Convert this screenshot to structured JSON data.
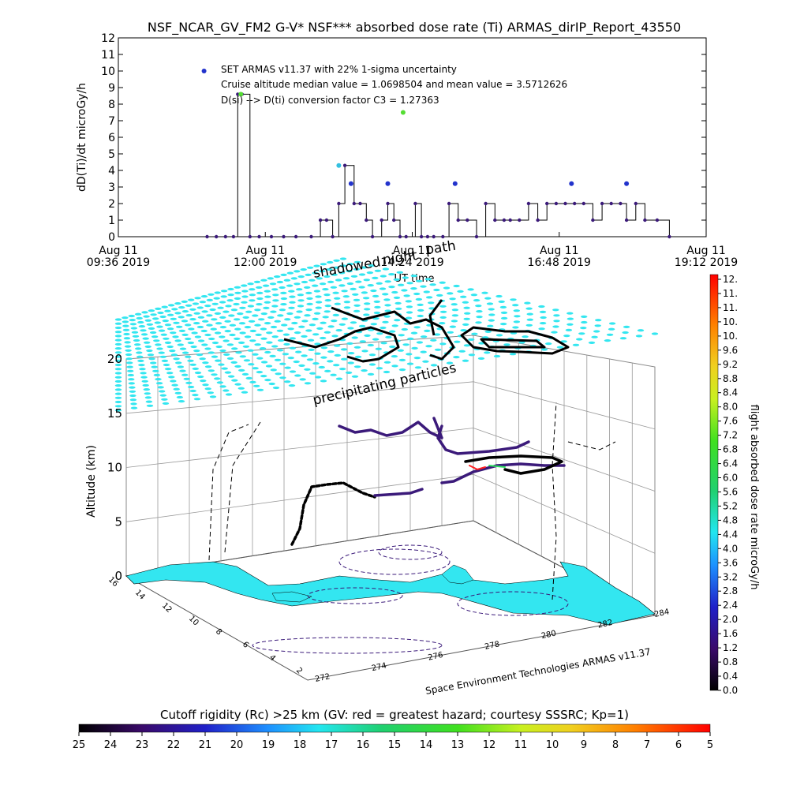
{
  "title": "NSF_NCAR_GV_FM2 G-V* NSF*** absorbed dose rate (Ti) ARMAS_dirIP_Report_43550",
  "colors": {
    "cyan": "#33e6f0",
    "path": "#000000",
    "purple": "#3b1a7a"
  },
  "chart_data": [
    {
      "type": "line",
      "ylabel": "dD(Ti)/dt microGy/h",
      "xlabel": "UT time",
      "ylim": [
        0,
        12
      ],
      "yticks": [
        "0",
        "1",
        "2",
        "3",
        "4",
        "5",
        "6",
        "7",
        "8",
        "9",
        "10",
        "11",
        "12"
      ],
      "xticks": [
        {
          "line1": "Aug 11",
          "line2": "09:36 2019"
        },
        {
          "line1": "Aug 11",
          "line2": "12:00 2019"
        },
        {
          "line1": "Aug 11",
          "line2": "14:24 2019"
        },
        {
          "line1": "Aug 11",
          "line2": "16:48 2019"
        },
        {
          "line1": "Aug 11",
          "line2": "19:12 2019"
        }
      ],
      "xlim_hours": [
        9.6,
        19.2
      ],
      "annotations": [
        "SET ARMAS v11.37 with 22% 1-sigma uncertainty",
        "Cruise altitude median value = 1.0698504 and mean value = 3.5712626",
        "D(si) --> D(ti) conversion factor C3 = 1.27363"
      ],
      "series": [
        {
          "x_hours": [
            11.05,
            11.2,
            11.35,
            11.48,
            11.55,
            11.62,
            11.75,
            11.9,
            12.1,
            12.3,
            12.5,
            12.75,
            12.9,
            13.0,
            13.1,
            13.2,
            13.3,
            13.45,
            13.55,
            13.65,
            13.75,
            13.9,
            14.0,
            14.1,
            14.2,
            14.3,
            14.45,
            14.55,
            14.65,
            14.75,
            14.9,
            15.0,
            15.15,
            15.3,
            15.45,
            15.6,
            15.75,
            15.9,
            16.0,
            16.15,
            16.3,
            16.45,
            16.6,
            16.75,
            16.9,
            17.05,
            17.2,
            17.35,
            17.5,
            17.65,
            17.8,
            17.9,
            18.05,
            18.2,
            18.4,
            18.6
          ],
          "values": [
            0,
            0,
            0,
            0,
            8.6,
            8.6,
            0,
            0,
            0,
            0,
            0,
            0,
            1,
            1,
            0,
            2,
            4.3,
            2,
            2,
            1,
            0,
            1,
            2,
            1,
            0,
            0,
            2,
            0,
            0,
            0,
            0,
            2,
            1,
            1,
            0,
            2,
            1,
            1,
            1,
            1,
            2,
            1,
            2,
            2,
            2,
            2,
            2,
            1,
            2,
            2,
            2,
            1,
            2,
            1,
            1,
            0
          ]
        }
      ],
      "highlight_points": [
        {
          "x_hours": 11.0,
          "value": 10.0,
          "color": "#2233cc"
        },
        {
          "x_hours": 11.6,
          "value": 8.6,
          "color": "#55dd33"
        },
        {
          "x_hours": 13.2,
          "value": 4.3,
          "color": "#33c0e0"
        },
        {
          "x_hours": 13.4,
          "value": 3.2,
          "color": "#2233cc"
        },
        {
          "x_hours": 14.0,
          "value": 3.2,
          "color": "#2233cc"
        },
        {
          "x_hours": 14.25,
          "value": 7.5,
          "color": "#55dd33"
        },
        {
          "x_hours": 15.1,
          "value": 3.2,
          "color": "#2233cc"
        },
        {
          "x_hours": 17.0,
          "value": 3.2,
          "color": "#2233cc"
        },
        {
          "x_hours": 17.9,
          "value": 3.2,
          "color": "#2233cc"
        }
      ]
    },
    {
      "type": "scatter",
      "zlabel": "Altitude (km)",
      "zticks": [
        "0",
        "5",
        "10",
        "15",
        "20"
      ],
      "lon_ticks": [
        "272",
        "274",
        "276",
        "278",
        "280",
        "282",
        "284"
      ],
      "lat_ticks": [
        "16",
        "14",
        "12",
        "10",
        "8",
        "6",
        "4",
        "2"
      ],
      "annotations": [
        "shadowed",
        "night",
        "path",
        "precipitating particles",
        "Space Environment Technologies ARMAS v11.37"
      ],
      "colorbar": {
        "label": "flight absorbed dose rate microGy/h",
        "ticks": [
          "12.",
          "11.",
          "11.",
          "10.",
          "10.",
          "9.6",
          "9.2",
          "8.8",
          "8.4",
          "8.0",
          "7.6",
          "7.2",
          "6.8",
          "6.4",
          "6.0",
          "5.6",
          "5.2",
          "4.8",
          "4.4",
          "4.0",
          "3.6",
          "3.2",
          "2.8",
          "2.4",
          "2.0",
          "1.6",
          "1.2",
          "0.8",
          "0.4",
          "0.0"
        ]
      }
    },
    {
      "type": "heatmap",
      "title": "Cutoff rigidity (Rc) >25 km (GV: red = greatest hazard; courtesy SSSRC; Kp=1)",
      "ticks": [
        "25",
        "24",
        "23",
        "22",
        "21",
        "20",
        "19",
        "18",
        "17",
        "16",
        "15",
        "14",
        "13",
        "12",
        "11",
        "10",
        "9",
        "8",
        "7",
        "6",
        "5"
      ]
    }
  ]
}
